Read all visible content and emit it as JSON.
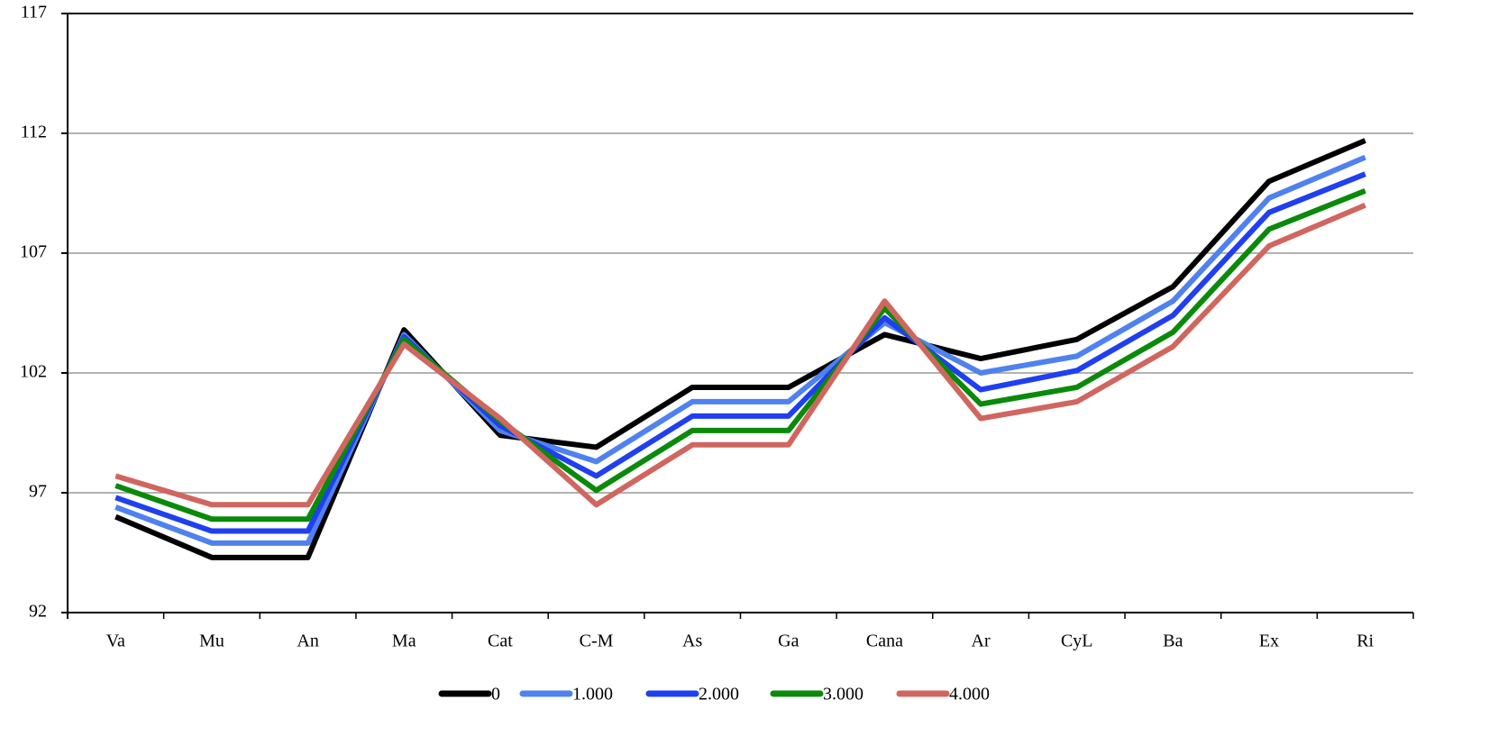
{
  "chart_data": {
    "type": "line",
    "categories": [
      "Va",
      "Mu",
      "An",
      "Ma",
      "Cat",
      "C-M",
      "As",
      "Ga",
      "Cana",
      "Ar",
      "CyL",
      "Ba",
      "Ex",
      "Ri"
    ],
    "series": [
      {
        "name": "0",
        "color": "#000000",
        "values": [
          96.0,
          94.3,
          94.3,
          103.8,
          99.4,
          98.9,
          101.4,
          101.4,
          103.6,
          102.6,
          103.4,
          105.6,
          110.0,
          111.7
        ]
      },
      {
        "name": "1.000",
        "color": "#4f81f0",
        "values": [
          96.4,
          94.9,
          94.9,
          103.6,
          99.6,
          98.3,
          100.8,
          100.8,
          104.1,
          102.0,
          102.7,
          105.0,
          109.3,
          111.0
        ]
      },
      {
        "name": "2.000",
        "color": "#1f3ff0",
        "values": [
          96.8,
          95.4,
          95.4,
          103.5,
          99.8,
          97.7,
          100.2,
          100.2,
          104.3,
          101.3,
          102.1,
          104.4,
          108.7,
          110.3
        ]
      },
      {
        "name": "3.000",
        "color": "#0a8a0a",
        "values": [
          97.3,
          95.9,
          95.9,
          103.4,
          100.0,
          97.1,
          99.6,
          99.6,
          104.7,
          100.7,
          101.4,
          103.7,
          108.0,
          109.6
        ]
      },
      {
        "name": "4.000",
        "color": "#d0665f",
        "values": [
          97.7,
          96.5,
          96.5,
          103.2,
          100.1,
          96.5,
          99.0,
          99.0,
          105.0,
          100.1,
          100.8,
          103.1,
          107.3,
          109.0
        ]
      }
    ],
    "ylim": [
      92,
      117
    ],
    "yticks": [
      92,
      97,
      102,
      107,
      112,
      117
    ],
    "grid": true,
    "legend": "bottom"
  }
}
